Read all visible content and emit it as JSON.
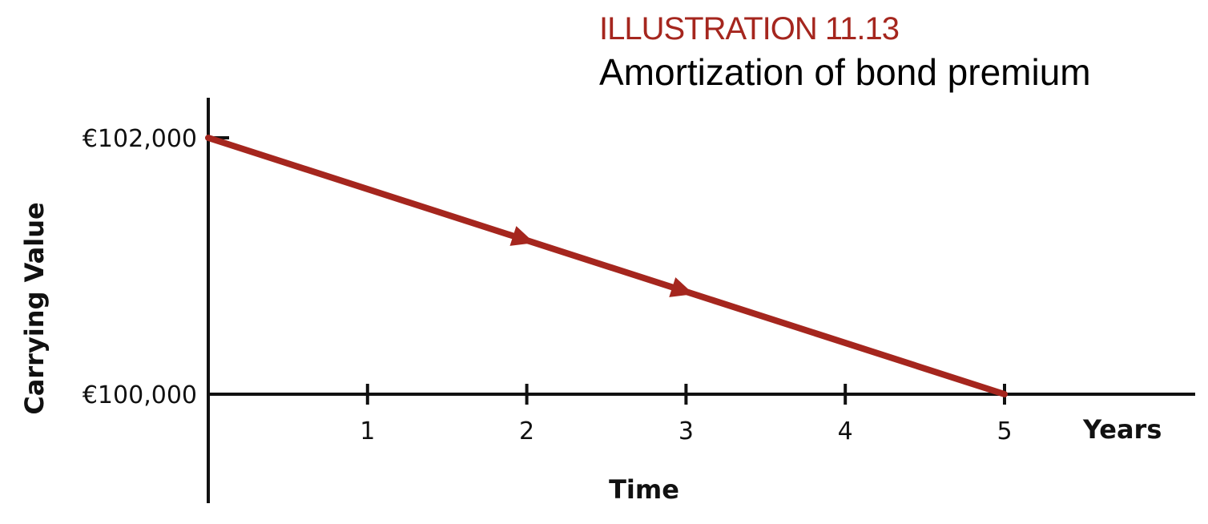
{
  "header": {
    "illustration_label": "ILLUSTRATION 11.13",
    "title": "Amortization of bond premium"
  },
  "colors": {
    "accent": "#a5261e",
    "axis": "#111111"
  },
  "chart_data": {
    "type": "line",
    "title": "Amortization of bond premium",
    "xlabel": "Time",
    "x_unit_label": "Years",
    "ylabel": "Carrying Value",
    "x_ticks": [
      "1",
      "2",
      "3",
      "4",
      "5"
    ],
    "y_ticks": [
      {
        "value": 100000,
        "label": "€100,000"
      },
      {
        "value": 102000,
        "label": "€102,000"
      }
    ],
    "xlim": [
      0,
      5
    ],
    "ylim": [
      100000,
      102000
    ],
    "grid": false,
    "series": [
      {
        "x": [
          0,
          5
        ],
        "y": [
          102000,
          100000
        ],
        "arrows_at_x": [
          2,
          3
        ]
      }
    ]
  }
}
